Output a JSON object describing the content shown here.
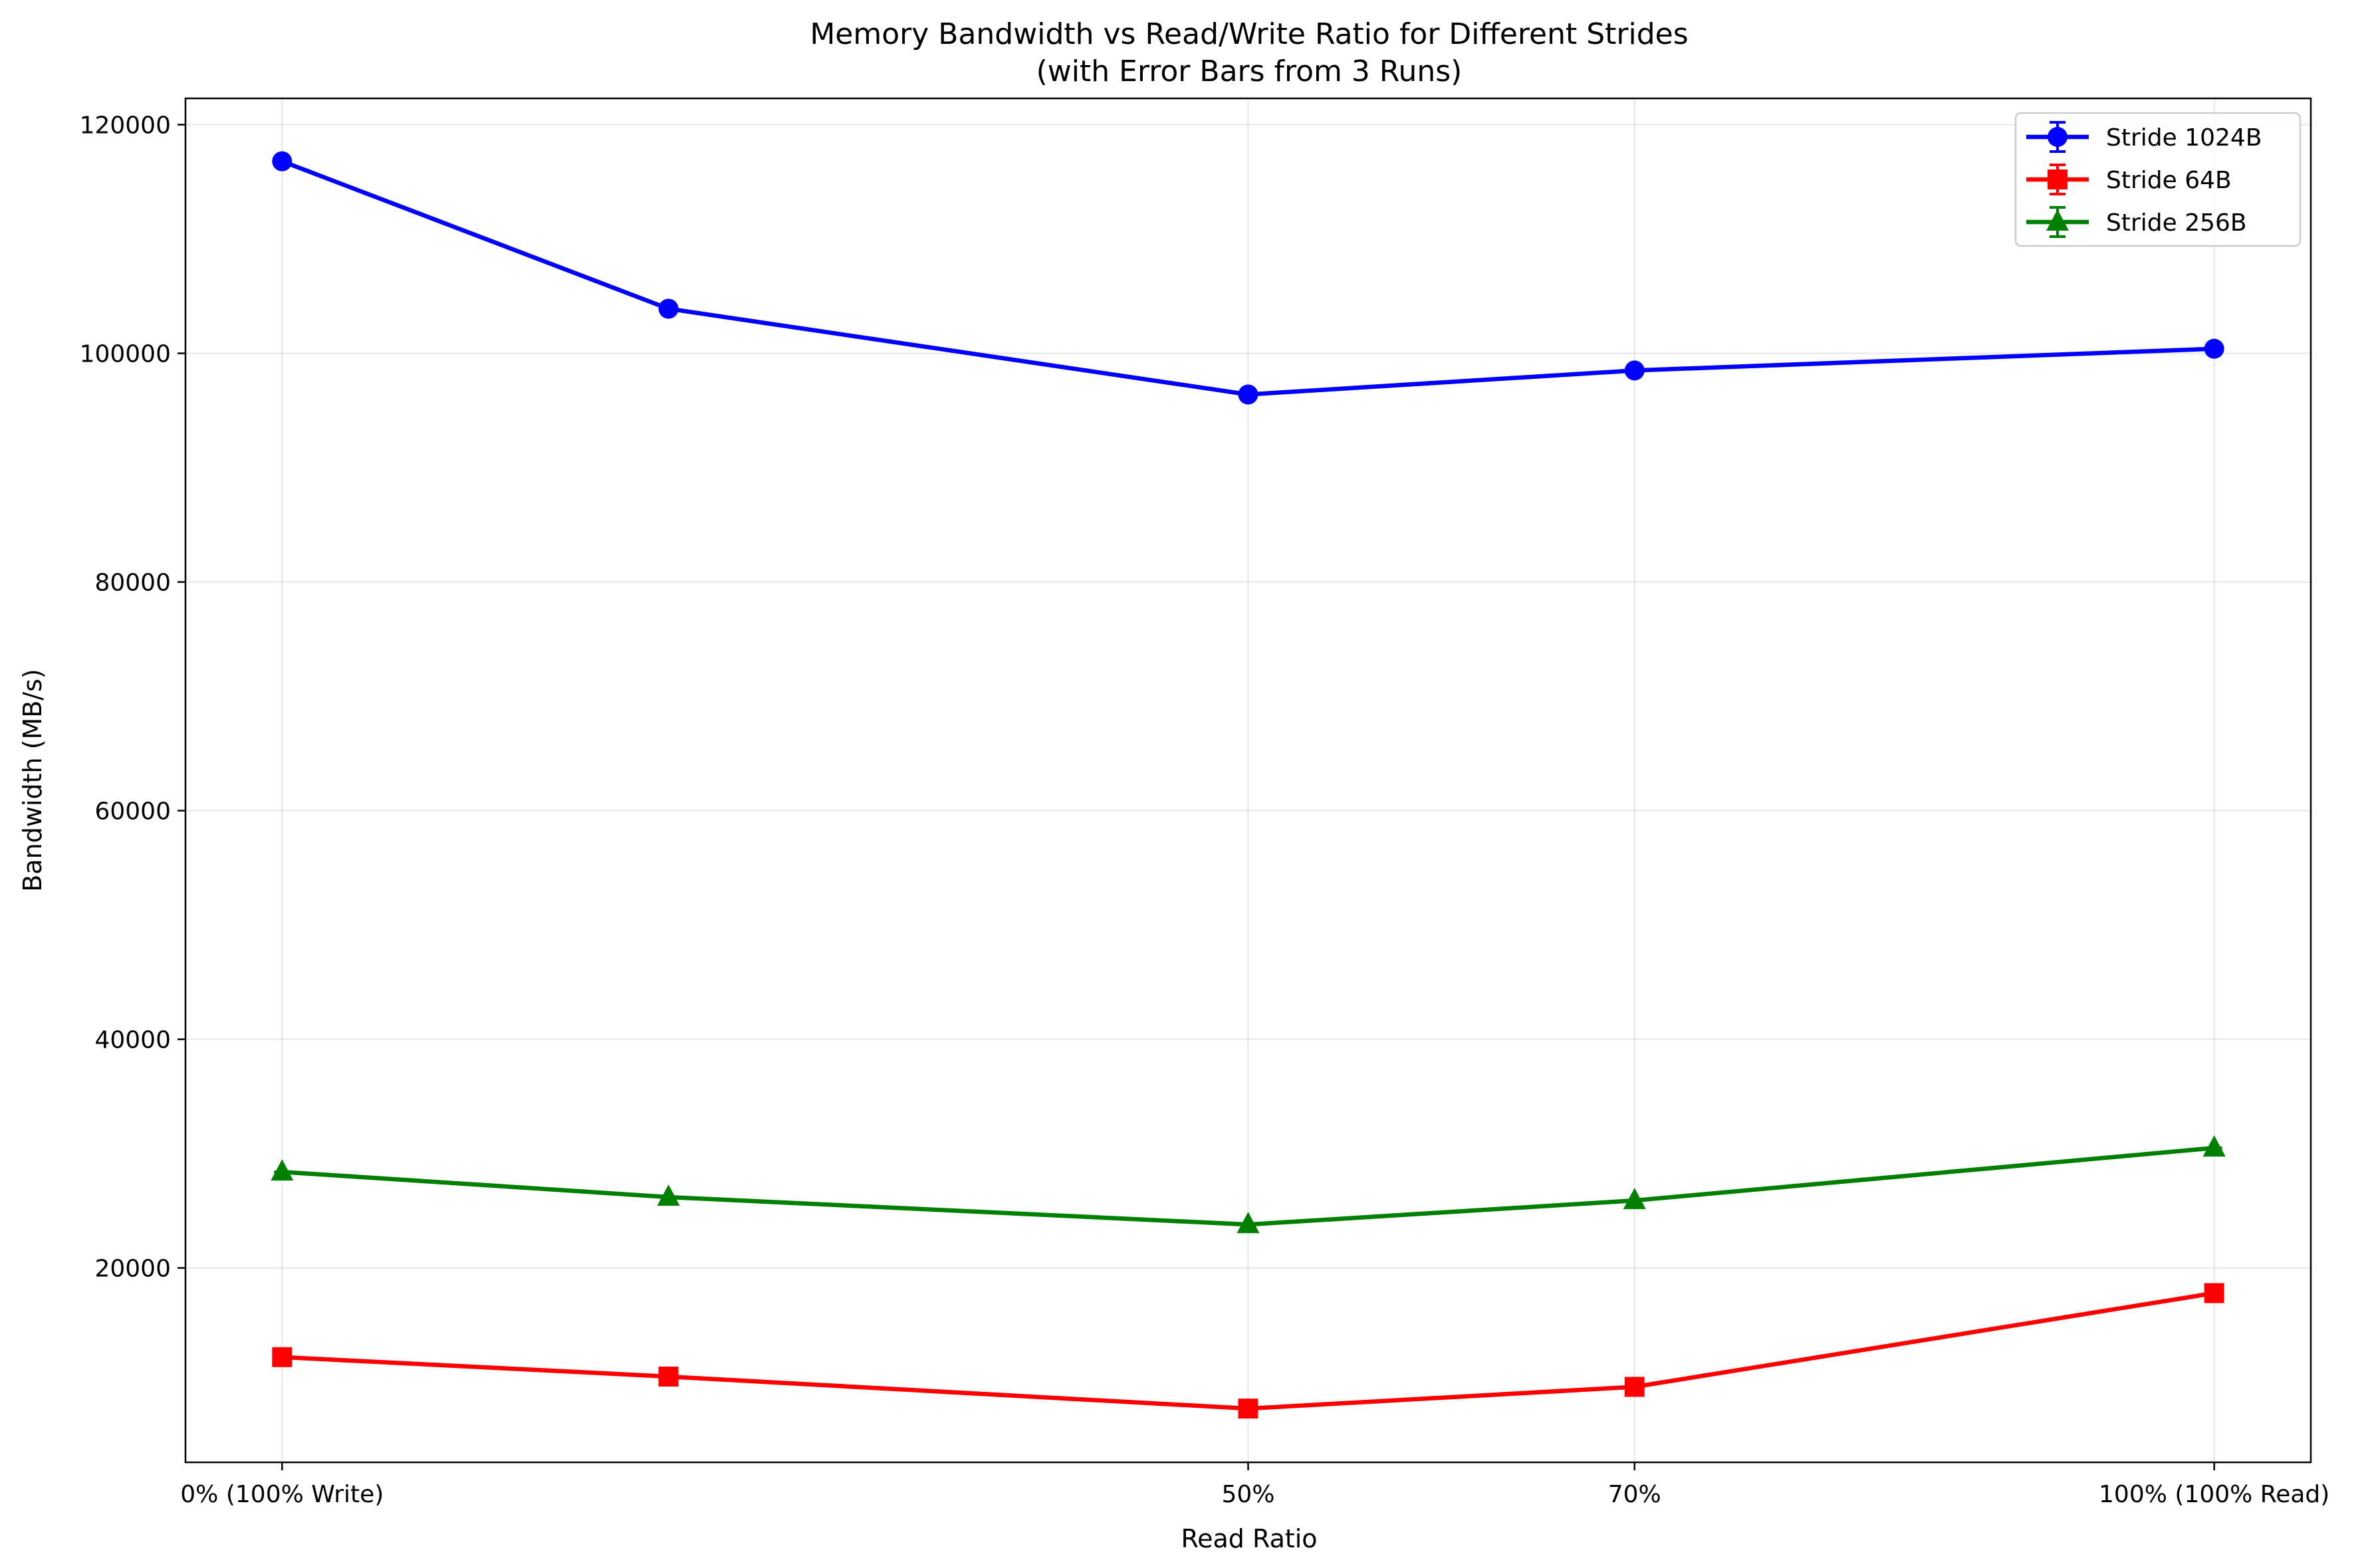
{
  "chart_data": {
    "type": "line",
    "title": "Memory Bandwidth vs Read/Write Ratio for Different Strides",
    "subtitle": "(with Error Bars from 3 Runs)",
    "xlabel": "Read Ratio",
    "ylabel": "Bandwidth (MB/s)",
    "x": [
      0,
      20,
      50,
      70,
      100
    ],
    "x_ticks": [
      {
        "value": 0,
        "label": "0% (100% Write)"
      },
      {
        "value": 50,
        "label": "50%"
      },
      {
        "value": 70,
        "label": "70%"
      },
      {
        "value": 100,
        "label": "100% (100% Read)"
      }
    ],
    "xlim": [
      -5,
      105
    ],
    "y_ticks": [
      {
        "value": 20000,
        "label": "20000"
      },
      {
        "value": 40000,
        "label": "40000"
      },
      {
        "value": 60000,
        "label": "60000"
      },
      {
        "value": 80000,
        "label": "80000"
      },
      {
        "value": 100000,
        "label": "100000"
      },
      {
        "value": 120000,
        "label": "120000"
      }
    ],
    "ylim": [
      3000,
      122300
    ],
    "grid": true,
    "legend_position": "top-right",
    "series": [
      {
        "name": "Stride 1024B",
        "color": "#0000ff",
        "marker": "circle",
        "values": [
          116800,
          103900,
          96400,
          98500,
          100400
        ]
      },
      {
        "name": "Stride 64B",
        "color": "#ff0000",
        "marker": "square",
        "values": [
          12200,
          10500,
          7700,
          9600,
          17800
        ]
      },
      {
        "name": "Stride 256B",
        "color": "#008000",
        "marker": "triangle",
        "values": [
          28400,
          26200,
          23800,
          25900,
          30500
        ]
      }
    ]
  }
}
